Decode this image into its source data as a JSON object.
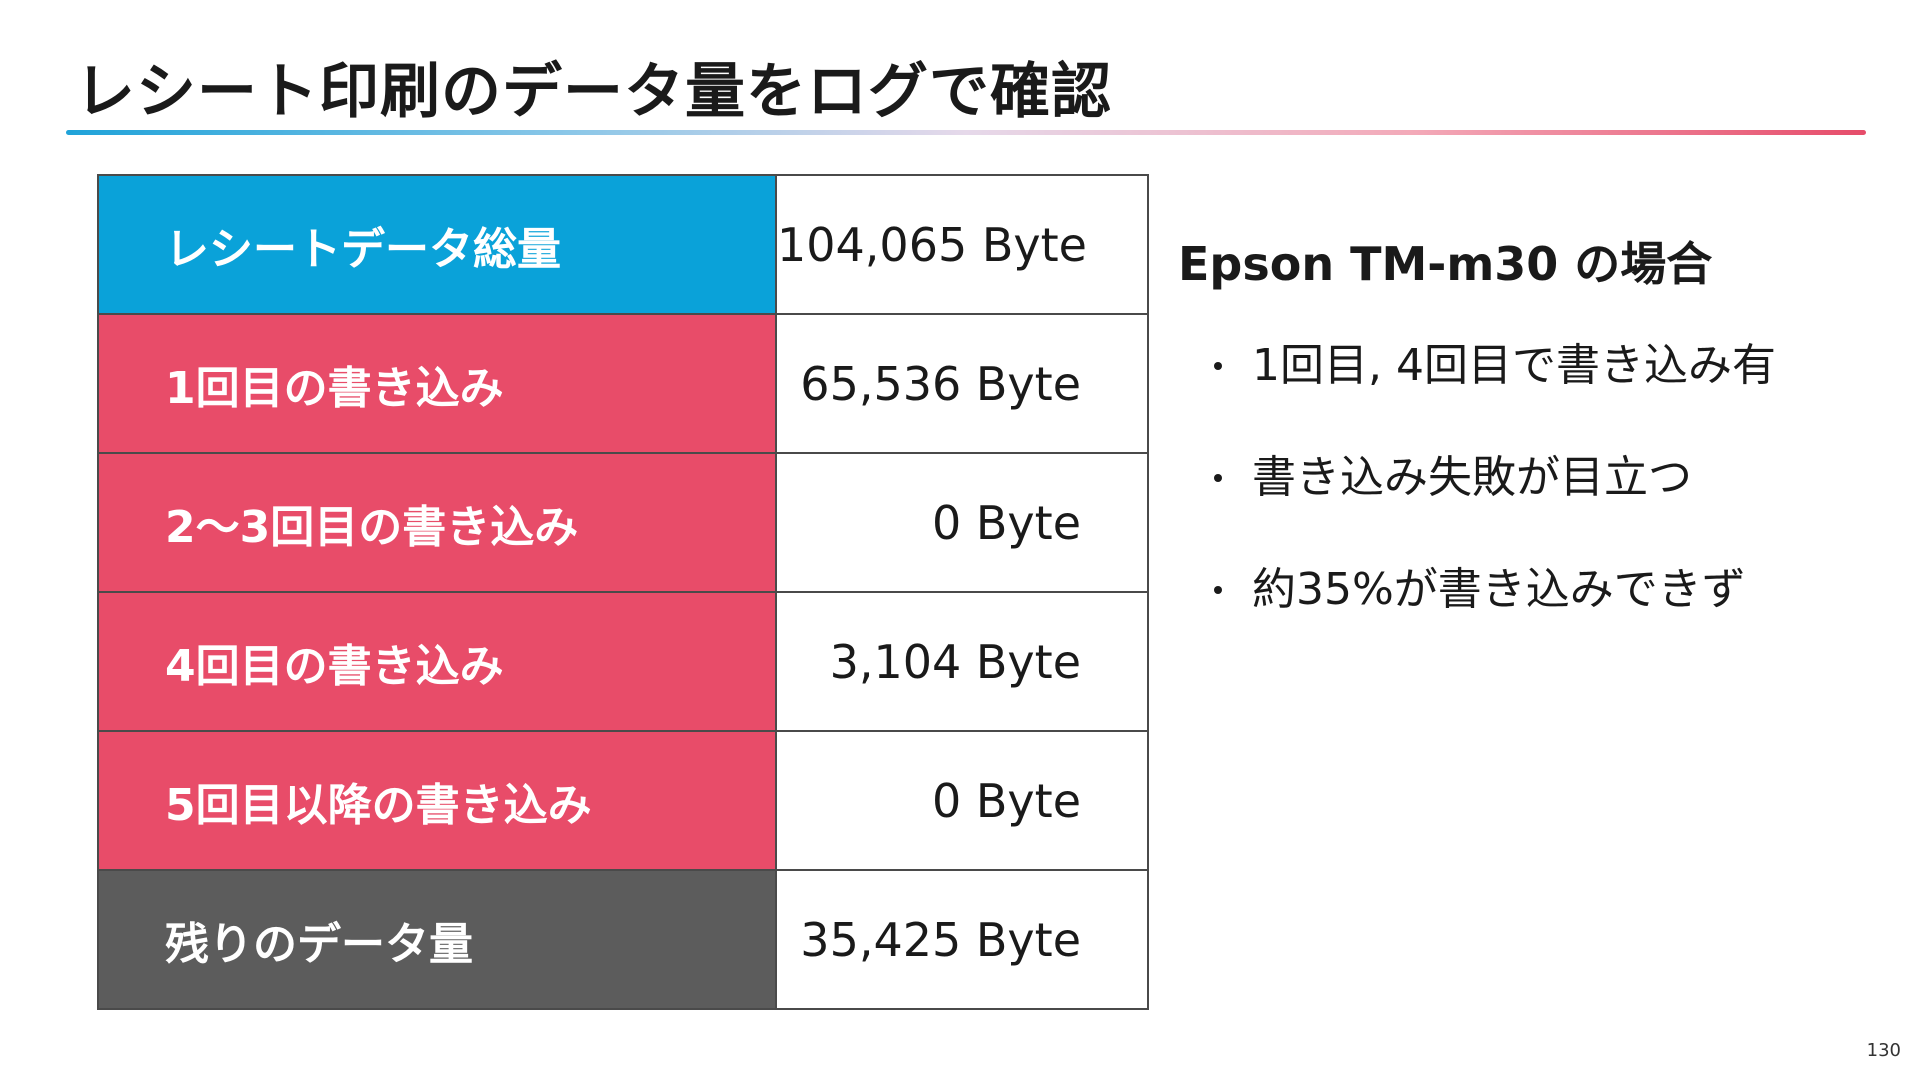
{
  "slide": {
    "title": "レシート印刷のデータ量をログで確認",
    "page_number": "130"
  },
  "table": {
    "rows": [
      {
        "label": "レシートデータ総量",
        "value": "104,065 Byte",
        "category": "total"
      },
      {
        "label": "1回目の書き込み",
        "value": "65,536 Byte",
        "category": "write"
      },
      {
        "label": "2〜3回目の書き込み",
        "value": "0 Byte",
        "category": "write"
      },
      {
        "label": "4回目の書き込み",
        "value": "3,104 Byte",
        "category": "write"
      },
      {
        "label": "5回目以降の書き込み",
        "value": "0 Byte",
        "category": "write"
      },
      {
        "label": "残りのデータ量",
        "value": "35,425 Byte",
        "category": "remain"
      }
    ]
  },
  "side": {
    "heading": "Epson TM-m30 の場合",
    "bullets": [
      "1回目, 4回目で書き込み有",
      "書き込み失敗が目立つ",
      "約35%が書き込みできず"
    ]
  },
  "colors": {
    "total_row": "#0aa2d9",
    "write_rows": "#e84c69",
    "remain_row": "#5c5c5c",
    "rule_gradient": [
      "#1fa3d9",
      "#e64c6a"
    ]
  }
}
